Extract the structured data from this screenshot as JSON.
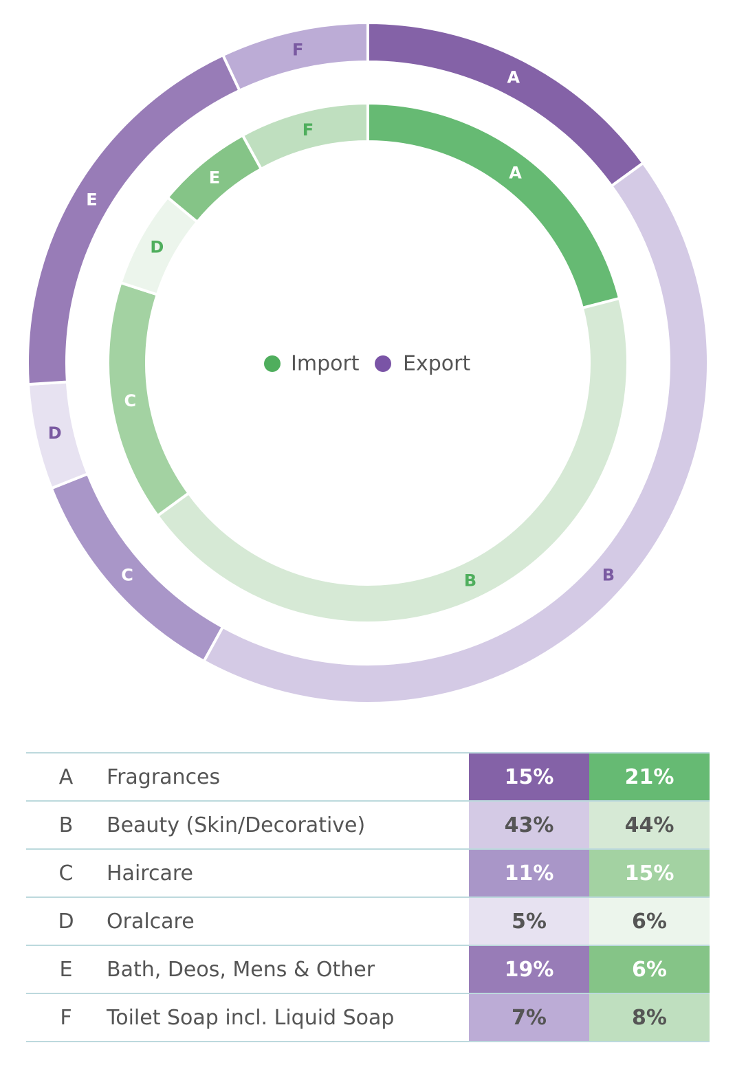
{
  "chart_data": {
    "type": "donut",
    "categories": [
      "A",
      "B",
      "C",
      "D",
      "E",
      "F"
    ],
    "series": [
      {
        "name": "Export",
        "ring": "outer",
        "values": [
          15,
          43,
          11,
          5,
          19,
          7
        ]
      },
      {
        "name": "Import",
        "ring": "inner",
        "values": [
          21,
          44,
          15,
          6,
          6,
          8
        ]
      }
    ],
    "legend": {
      "placement": "center",
      "entries": [
        "Import",
        "Export"
      ]
    },
    "table": {
      "rows": [
        {
          "letter": "A",
          "name": "Fragrances",
          "export": "15%",
          "import": "21%"
        },
        {
          "letter": "B",
          "name": "Beauty (Skin/Decorative)",
          "export": "43%",
          "import": "44%"
        },
        {
          "letter": "C",
          "name": "Haircare",
          "export": "11%",
          "import": "15%"
        },
        {
          "letter": "D",
          "name": "Oralcare",
          "export": "5%",
          "import": "6%"
        },
        {
          "letter": "E",
          "name": "Bath, Deos, Mens & Other",
          "export": "19%",
          "import": "6%"
        },
        {
          "letter": "F",
          "name": "Toilet Soap incl. Liquid Soap",
          "export": "7%",
          "import": "8%"
        }
      ]
    }
  },
  "colors": {
    "export_fill": [
      "#8462a7",
      "#d4cae5",
      "#a996c8",
      "#e7e2f1",
      "#987cb7",
      "#bcacd6"
    ],
    "export_text": [
      "#ffffff",
      "#7a5aa1",
      "#ffffff",
      "#7a5aa1",
      "#ffffff",
      "#7a5aa1"
    ],
    "import_fill": [
      "#66ba73",
      "#d6e9d5",
      "#a3d2a2",
      "#ecf5ec",
      "#85c487",
      "#bfdfbf"
    ],
    "import_text": [
      "#ffffff",
      "#4fae5d",
      "#ffffff",
      "#4fae5d",
      "#ffffff",
      "#4fae5d"
    ],
    "table_export_text": [
      "#ffffff",
      "#555555",
      "#ffffff",
      "#555555",
      "#ffffff",
      "#555555"
    ],
    "table_import_text": [
      "#ffffff",
      "#555555",
      "#ffffff",
      "#555555",
      "#ffffff",
      "#555555"
    ],
    "legend_import_dot": "#4fae5d",
    "legend_export_dot": "#7a54a6"
  }
}
